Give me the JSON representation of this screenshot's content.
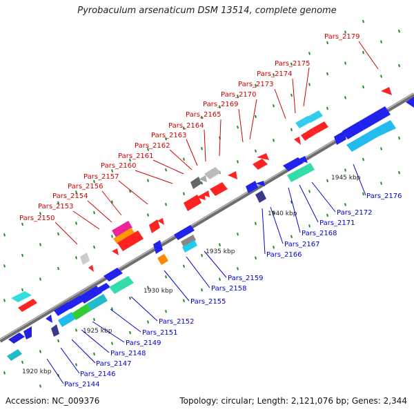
{
  "title": "Pyrobaculum arsenaticum DSM 13514, complete genome",
  "footer": {
    "accession": "Accession: NC_009376",
    "info": "Topology: circular; Length: 2,121,076 bp; Genes: 2,344"
  },
  "colors": {
    "top_strand_label": "#cc0000",
    "bottom_strand_label": "#0000cc",
    "backbone": "#888888",
    "tick": "#228b22"
  },
  "scale_labels": [
    "1920 kbp",
    "1925 kbp",
    "1930 kbp",
    "1935 kbp",
    "1940 kbp",
    "1945 kbp"
  ],
  "top_genes": [
    "Pars_2150",
    "Pars_2153",
    "Pars_2154",
    "Pars_2156",
    "Pars_2157",
    "Pars_2160",
    "Pars_2161",
    "Pars_2162",
    "Pars_2163",
    "Pars_2164",
    "Pars_2165",
    "Pars_2169",
    "Pars_2170",
    "Pars_2173",
    "Pars_2174",
    "Pars_2175",
    "Pars_2179"
  ],
  "bottom_genes": [
    "Pars_2144",
    "Pars_2146",
    "Pars_2147",
    "Pars_2148",
    "Pars_2149",
    "Pars_2151",
    "Pars_2152",
    "Pars_2155",
    "Pars_2158",
    "Pars_2159",
    "Pars_2166",
    "Pars_2167",
    "Pars_2168",
    "Pars_2171",
    "Pars_2172",
    "Pars_2176"
  ]
}
